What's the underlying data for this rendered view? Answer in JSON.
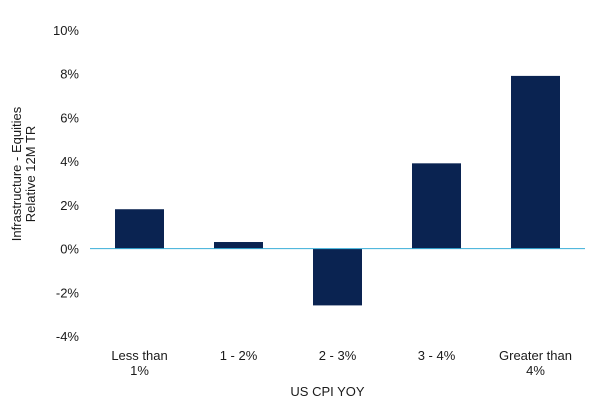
{
  "chart_data": {
    "type": "bar",
    "title": "",
    "xlabel": "US CPI YOY",
    "ylabel_lines": [
      "Infrastructure - Equities",
      "Relative 12M TR"
    ],
    "categories": [
      [
        "Less than",
        "1%"
      ],
      [
        "1 - 2%"
      ],
      [
        "2 - 3%"
      ],
      [
        "3 - 4%"
      ],
      [
        "Greater than",
        "4%"
      ]
    ],
    "values": [
      1.8,
      0.3,
      -2.6,
      3.9,
      7.9
    ],
    "ylim": [
      -4,
      10
    ],
    "yticks": [
      -4,
      -2,
      0,
      2,
      4,
      6,
      8,
      10
    ],
    "ytick_labels": [
      "-4%",
      "-2%",
      "0%",
      "2%",
      "4%",
      "6%",
      "8%",
      "10%"
    ],
    "grid": false,
    "legend": "none",
    "colors": {
      "bar": "#0a2351",
      "zero_line": "#3aaed8"
    }
  }
}
